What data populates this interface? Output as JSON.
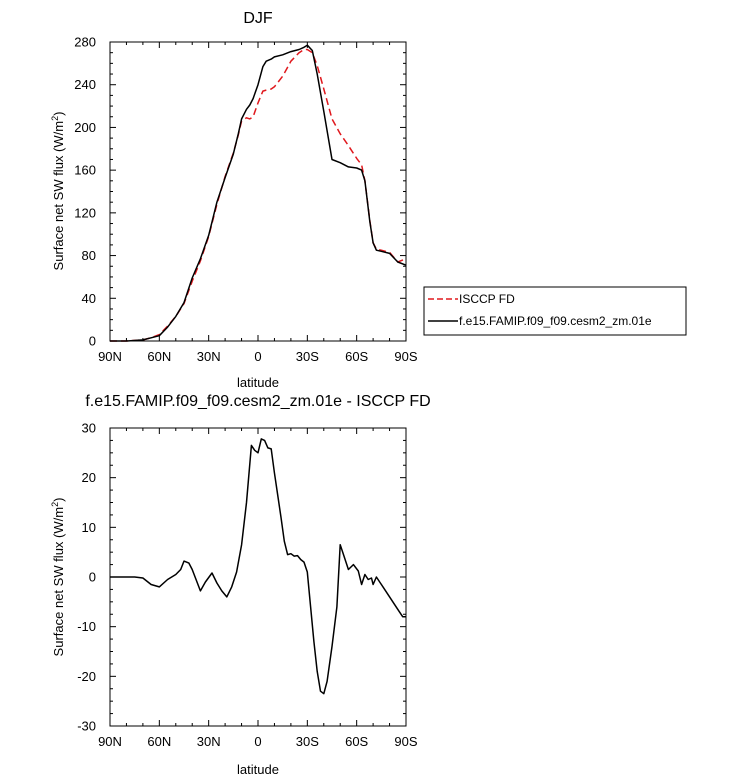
{
  "chart_data": [
    {
      "type": "line",
      "title": "DJF",
      "xlabel": "latitude",
      "ylabel": "Surface net SW flux (W/m",
      "ylabel_sup": "2",
      "ylabel_end": ")",
      "xlim": [
        -90,
        90
      ],
      "ylim": [
        0,
        280
      ],
      "xticks": [
        -90,
        -60,
        -30,
        0,
        30,
        60,
        90
      ],
      "xtick_labels": [
        "90N",
        "60N",
        "30N",
        "0",
        "30S",
        "60S",
        "90S"
      ],
      "yticks": [
        0,
        40,
        80,
        120,
        160,
        200,
        240,
        280
      ],
      "ytick_labels": [
        "0",
        "40",
        "80",
        "120",
        "160",
        "200",
        "240",
        "280"
      ],
      "grid": false,
      "legend_position": "right-outside",
      "series": [
        {
          "name": "ISCCP FD",
          "color": "#e0181d",
          "dash": "dashed",
          "x": [
            -90,
            -80,
            -70,
            -65,
            -60,
            -55,
            -50,
            -45,
            -40,
            -35,
            -30,
            -25,
            -20,
            -15,
            -12,
            -10,
            -7,
            -5,
            -3,
            0,
            3,
            5,
            8,
            10,
            15,
            20,
            25,
            28,
            30,
            33,
            36,
            40,
            45,
            50,
            55,
            60,
            63,
            65,
            68,
            70,
            72,
            75,
            80,
            85,
            90
          ],
          "y": [
            0,
            0,
            1,
            3,
            6,
            14,
            23,
            35,
            56,
            75,
            98,
            128,
            154,
            176,
            193,
            206,
            209,
            208,
            210,
            223,
            234,
            235,
            236,
            238,
            248,
            262,
            270,
            273,
            273,
            270,
            258,
            236,
            208,
            194,
            183,
            171,
            165,
            150,
            113,
            92,
            86,
            85,
            83,
            74,
            77
          ]
        },
        {
          "name": "f.e15.FAMIP.f09_f09.cesm2_zm.01e",
          "color": "#000000",
          "dash": "solid",
          "x": [
            -90,
            -80,
            -70,
            -65,
            -60,
            -55,
            -50,
            -45,
            -40,
            -35,
            -30,
            -25,
            -20,
            -15,
            -12,
            -10,
            -7,
            -5,
            -3,
            0,
            3,
            5,
            8,
            10,
            15,
            20,
            25,
            28,
            30,
            33,
            36,
            40,
            45,
            50,
            55,
            60,
            63,
            65,
            68,
            70,
            72,
            75,
            80,
            85,
            90
          ],
          "y": [
            0,
            0,
            1,
            3,
            5,
            13,
            23,
            36,
            59,
            77,
            99,
            130,
            153,
            175,
            194,
            208,
            217,
            221,
            227,
            240,
            257,
            262,
            264,
            266,
            268,
            271,
            273,
            275,
            277,
            272,
            250,
            215,
            170,
            167,
            163,
            162,
            160,
            150,
            112,
            92,
            85,
            84,
            82,
            74,
            71
          ]
        }
      ]
    },
    {
      "type": "line",
      "title": "f.e15.FAMIP.f09_f09.cesm2_zm.01e - ISCCP FD",
      "xlabel": "latitude",
      "ylabel": "Surface net SW flux (W/m",
      "ylabel_sup": "2",
      "ylabel_end": ")",
      "xlim": [
        -90,
        90
      ],
      "ylim": [
        -30,
        30
      ],
      "xticks": [
        -90,
        -60,
        -30,
        0,
        30,
        60,
        90
      ],
      "xtick_labels": [
        "90N",
        "60N",
        "30N",
        "0",
        "30S",
        "60S",
        "90S"
      ],
      "yticks": [
        -30,
        -20,
        -10,
        0,
        10,
        20,
        30
      ],
      "ytick_labels": [
        "-30",
        "-20",
        "-10",
        "0",
        "10",
        "20",
        "30"
      ],
      "grid": false,
      "series": [
        {
          "name": "",
          "color": "#000000",
          "dash": "solid",
          "x": [
            -90,
            -75,
            -70,
            -65,
            -60,
            -55,
            -50,
            -47,
            -45,
            -42,
            -40,
            -35,
            -32,
            -28,
            -25,
            -22,
            -19,
            -16,
            -13,
            -10,
            -7,
            -4,
            -2,
            0,
            2,
            4,
            6,
            8,
            10,
            12,
            14,
            16,
            18,
            20,
            22,
            24,
            26,
            28,
            30,
            32,
            34,
            36,
            38,
            40,
            42,
            45,
            48,
            50,
            52,
            55,
            58,
            61,
            63,
            65,
            67,
            69,
            70,
            72,
            74,
            76,
            78,
            80,
            82,
            84,
            86,
            88,
            90
          ],
          "y": [
            0,
            0,
            -0.2,
            -1.5,
            -2,
            -0.5,
            0.5,
            1.5,
            3.2,
            2.8,
            1.5,
            -2.8,
            -1,
            0.8,
            -1.2,
            -2.8,
            -4,
            -2,
            1,
            6.5,
            15,
            26.5,
            25.5,
            25,
            27.8,
            27.5,
            26,
            25.8,
            21,
            16.5,
            12,
            7.2,
            4.5,
            4.7,
            4.2,
            4.3,
            3.5,
            3,
            1,
            -6,
            -13,
            -19,
            -23,
            -23.5,
            -21,
            -14,
            -6,
            6.5,
            4.5,
            1.5,
            2.5,
            1.2,
            -1.5,
            0.5,
            -0.5,
            -0.2,
            -1.5,
            0,
            -1,
            -2,
            -3,
            -4,
            -5,
            -6,
            -7,
            -8,
            -8
          ]
        }
      ]
    }
  ]
}
